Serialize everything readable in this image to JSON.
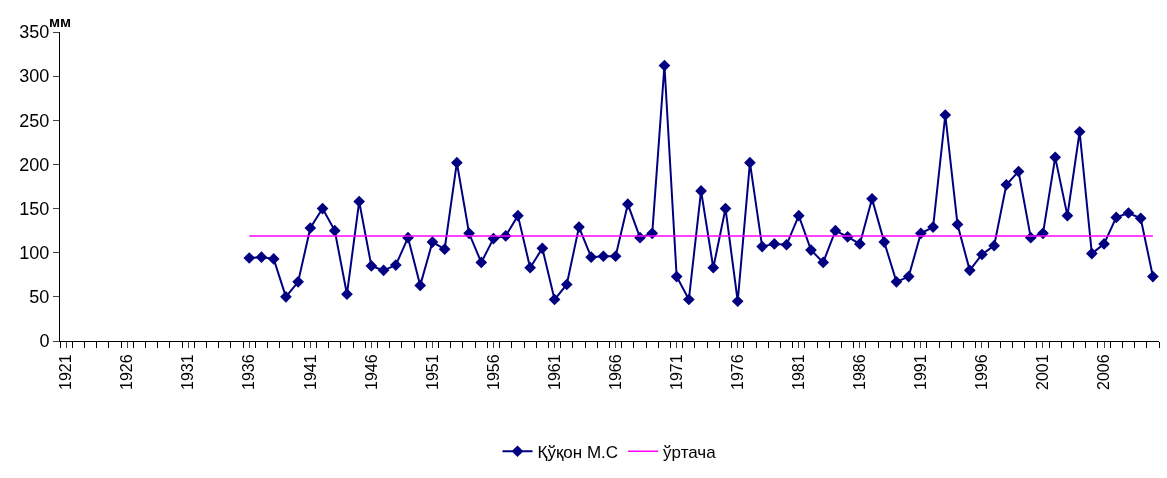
{
  "chart_data": {
    "type": "line",
    "ylabel": "мм",
    "categories": [
      "1921",
      null,
      null,
      null,
      null,
      "1926",
      null,
      null,
      null,
      null,
      "1931",
      null,
      null,
      null,
      null,
      "1936",
      null,
      null,
      null,
      null,
      "1941",
      null,
      null,
      null,
      null,
      "1946",
      null,
      null,
      null,
      null,
      "1951",
      null,
      null,
      null,
      null,
      "1956",
      null,
      null,
      null,
      null,
      "1961",
      null,
      null,
      null,
      null,
      "1966",
      null,
      null,
      null,
      null,
      "1971",
      null,
      null,
      null,
      null,
      "1976",
      null,
      null,
      null,
      null,
      "1981",
      null,
      null,
      null,
      null,
      "1986",
      null,
      null,
      null,
      null,
      "1991",
      null,
      null,
      null,
      null,
      "1996",
      null,
      null,
      null,
      null,
      "2001",
      null,
      null,
      null,
      null,
      "2006",
      null,
      null,
      null,
      null
    ],
    "series": [
      {
        "name": "Қўқон М.С",
        "color": "#000080",
        "marker": "diamond",
        "values": [
          null,
          null,
          null,
          null,
          null,
          null,
          null,
          null,
          null,
          null,
          null,
          null,
          null,
          null,
          null,
          94,
          95,
          93,
          50,
          67,
          128,
          150,
          125,
          53,
          158,
          85,
          80,
          86,
          117,
          63,
          112,
          104,
          202,
          122,
          89,
          116,
          119,
          142,
          83,
          105,
          47,
          64,
          129,
          95,
          96,
          96,
          155,
          117,
          122,
          312,
          73,
          47,
          170,
          83,
          150,
          45,
          202,
          107,
          110,
          109,
          142,
          103,
          89,
          125,
          118,
          110,
          161,
          112,
          67,
          73,
          122,
          129,
          256,
          132,
          80,
          98,
          108,
          177,
          192,
          117,
          122,
          208,
          142,
          237,
          99,
          110,
          140,
          145,
          139,
          73
        ]
      },
      {
        "name": "ўртача",
        "color": "#ff00ff",
        "marker": "none",
        "values": [
          null,
          null,
          null,
          null,
          null,
          null,
          null,
          null,
          null,
          null,
          null,
          null,
          null,
          null,
          null,
          119,
          119,
          119,
          119,
          119,
          119,
          119,
          119,
          119,
          119,
          119,
          119,
          119,
          119,
          119,
          119,
          119,
          119,
          119,
          119,
          119,
          119,
          119,
          119,
          119,
          119,
          119,
          119,
          119,
          119,
          119,
          119,
          119,
          119,
          119,
          119,
          119,
          119,
          119,
          119,
          119,
          119,
          119,
          119,
          119,
          119,
          119,
          119,
          119,
          119,
          119,
          119,
          119,
          119,
          119,
          119,
          119,
          119,
          119,
          119,
          119,
          119,
          119,
          119,
          119,
          119,
          119,
          119,
          119,
          119,
          119,
          119,
          119,
          119,
          119
        ]
      }
    ],
    "ylim": [
      0,
      350
    ],
    "yticks": [
      0,
      50,
      100,
      150,
      200,
      250,
      300,
      350
    ],
    "legend": "bottom"
  }
}
